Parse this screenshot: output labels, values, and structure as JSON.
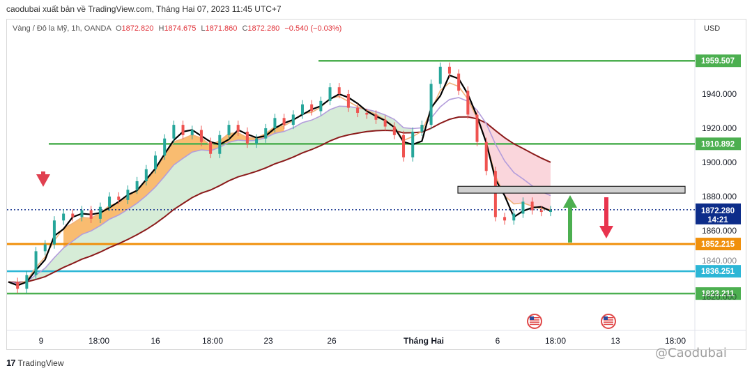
{
  "header": {
    "caption": "caodubai xuất bản về TradingView.com, Tháng Hai 07, 2023 11:45 UTC+7"
  },
  "symbol": {
    "name": "Vàng / Đô la Mỹ, 1h, OANDA",
    "open_label": "O",
    "open": "1872.820",
    "high_label": "H",
    "high": "1874.675",
    "low_label": "L",
    "low": "1871.860",
    "close_label": "C",
    "close": "1872.280",
    "change": "−0.540 (−0.03%)"
  },
  "currency": "USD",
  "footer": {
    "brand": "TradingView",
    "brand_mark": "17",
    "watermark": "@Caodubai"
  },
  "colors": {
    "bull": "#26a69a",
    "bear": "#ef5350",
    "ma_fast": "#f0b27a",
    "ma_mid": "#b39ddb",
    "ma_slow": "#8b1a1a",
    "tenkan": "#000000",
    "cloud_orange": "#f7a540",
    "cloud_green": "#c8e6c9",
    "cloud_pink": "#f8c8d0",
    "level_green": "#4caf50",
    "level_orange": "#f0900c",
    "level_cyan": "#2cb6d6",
    "last_price": "#0d2d8a",
    "zone": "#d0d0d0"
  },
  "chart_data": {
    "type": "line",
    "instrument": "XAUUSD",
    "timeframe": "1h",
    "ylim": [
      1817,
      1972
    ],
    "y_ticks": [
      1860,
      1880,
      1900,
      1920,
      1940
    ],
    "partially_hidden_ticks": [
      "1840.000",
      "1820.000"
    ],
    "x_ticks": [
      "9",
      "18:00",
      "16",
      "18:00",
      "23",
      "26",
      "Tháng Hai",
      "6",
      "18:00",
      "13",
      "18:00"
    ],
    "price_series": [
      1830,
      1826,
      1834,
      1848,
      1852,
      1866,
      1870,
      1868,
      1872,
      1867,
      1874,
      1880,
      1878,
      1884,
      1889,
      1896,
      1904,
      1914,
      1922,
      1916,
      1919,
      1912,
      1905,
      1916,
      1922,
      1918,
      1911,
      1914,
      1920,
      1926,
      1922,
      1928,
      1934,
      1930,
      1936,
      1944,
      1940,
      1932,
      1929,
      1928,
      1925,
      1921,
      1916,
      1903,
      1918,
      1922,
      1946,
      1956,
      1952,
      1942,
      1928,
      1912,
      1895,
      1868,
      1866,
      1870,
      1877,
      1872,
      1871,
      1872
    ],
    "last_price": 1872.28,
    "last_price_countdown": "14:21",
    "levels": [
      {
        "price": 1959.507,
        "label": "1959.507",
        "color": "#4caf50"
      },
      {
        "price": 1910.892,
        "label": "1910.892",
        "color": "#4caf50"
      },
      {
        "price": 1852.215,
        "label": "1852.215",
        "color": "#f0900c"
      },
      {
        "price": 1836.251,
        "label": "1836.251",
        "color": "#2cb6d6"
      },
      {
        "price": 1823.211,
        "label": "1823.211",
        "color": "#4caf50"
      }
    ],
    "zone": {
      "from": 1882,
      "to": 1886
    },
    "arrows": [
      {
        "direction": "down",
        "color": "#e04050"
      },
      {
        "direction": "up",
        "color": "#4caf50"
      },
      {
        "direction": "down",
        "color": "#e8344e"
      }
    ],
    "events": [
      "us-flag-icon",
      "us-flag-icon"
    ]
  }
}
